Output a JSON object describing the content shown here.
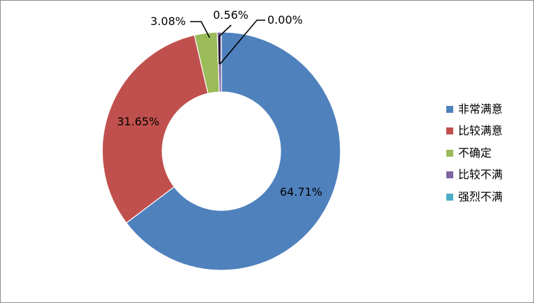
{
  "chart_data": {
    "type": "pie",
    "donut": true,
    "title": "",
    "categories": [
      "非常满意",
      "比较满意",
      "不确定",
      "比较不满",
      "强烈不满"
    ],
    "values": [
      64.71,
      31.65,
      3.08,
      0.56,
      0.0
    ],
    "value_labels": [
      "64.71%",
      "31.65%",
      "3.08%",
      "0.56%",
      "0.00%"
    ],
    "colors": [
      "#4F81BD",
      "#C0504D",
      "#9BBB59",
      "#8064A2",
      "#4BACC6"
    ],
    "legend_position": "right"
  }
}
